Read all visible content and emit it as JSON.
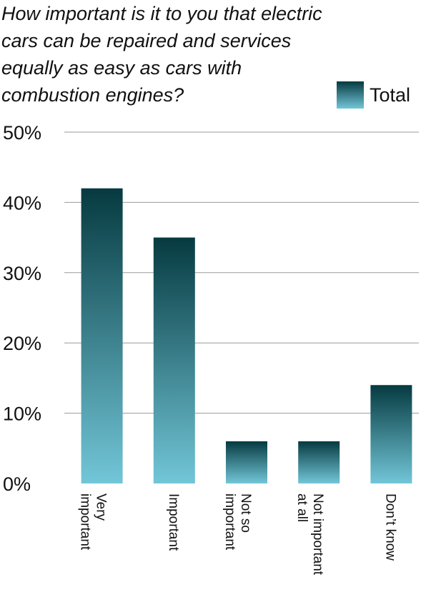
{
  "chart_data": {
    "type": "bar",
    "title": "How important is it to you that electric cars can be repaired and services equally as easy as cars with combustion engines?",
    "categories": [
      [
        "Very",
        "important"
      ],
      [
        "Important"
      ],
      [
        "Not so",
        "important"
      ],
      [
        "Not important",
        "at all"
      ],
      [
        "Don’t know"
      ]
    ],
    "series": [
      {
        "name": "Total",
        "values": [
          42,
          35,
          6,
          6,
          14
        ]
      }
    ],
    "yticks": [
      "0%",
      "10%",
      "20%",
      "30%",
      "40%",
      "50%"
    ],
    "ylim": [
      0,
      50
    ],
    "xlabel": "",
    "ylabel": "",
    "grid": true,
    "legend_position": "top-right",
    "colors": {
      "bar_top": "#063a40",
      "bar_bottom": "#72c6d8",
      "gridline": "#9a9a9a",
      "text": "#111111"
    }
  }
}
